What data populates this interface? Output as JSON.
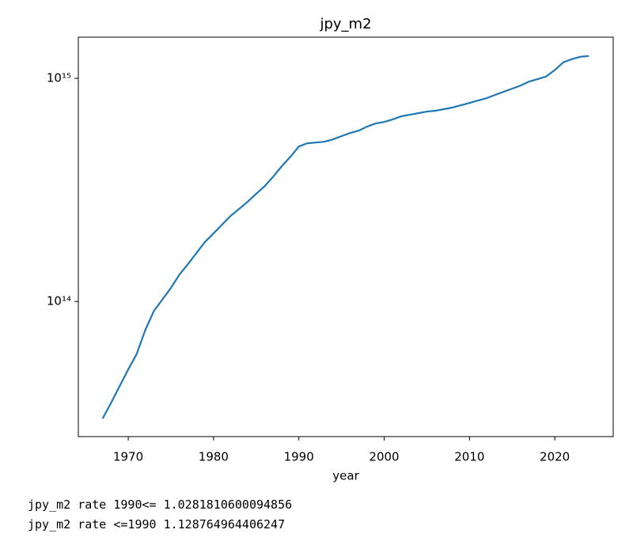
{
  "chart_data": {
    "type": "line",
    "title": "jpy_m2",
    "xlabel": "year",
    "x": [
      1967,
      1968,
      1969,
      1970,
      1971,
      1972,
      1973,
      1974,
      1975,
      1976,
      1977,
      1978,
      1979,
      1980,
      1981,
      1982,
      1983,
      1984,
      1985,
      1986,
      1987,
      1988,
      1989,
      1990,
      1991,
      1992,
      1993,
      1994,
      1995,
      1996,
      1997,
      1998,
      1999,
      2000,
      2001,
      2002,
      2003,
      2004,
      2005,
      2006,
      2007,
      2008,
      2009,
      2010,
      2011,
      2012,
      2013,
      2014,
      2015,
      2016,
      2017,
      2018,
      2019,
      2020,
      2021,
      2022,
      2023,
      2024
    ],
    "values": [
      29900000000000.0,
      35200000000000.0,
      41800000000000.0,
      49600000000000.0,
      58300000000000.0,
      74500000000000.0,
      90600000000000.0,
      102000000000000.0,
      115000000000000.0,
      132000000000000.0,
      147000000000000.0,
      165000000000000.0,
      185000000000000.0,
      202000000000000.0,
      221000000000000.0,
      242000000000000.0,
      260000000000000.0,
      280000000000000.0,
      304000000000000.0,
      329000000000000.0,
      363000000000000.0,
      404000000000000.0,
      445000000000000.0,
      495000000000000.0,
      512000000000000.0,
      516000000000000.0,
      520000000000000.0,
      533000000000000.0,
      551000000000000.0,
      569000000000000.0,
      583000000000000.0,
      608000000000000.0,
      628000000000000.0,
      638000000000000.0,
      655000000000000.0,
      676000000000000.0,
      687000000000000.0,
      698000000000000.0,
      710000000000000.0,
      716000000000000.0,
      728000000000000.0,
      740000000000000.0,
      758000000000000.0,
      776000000000000.0,
      796000000000000.0,
      815000000000000.0,
      843000000000000.0,
      871000000000000.0,
      899000000000000.0,
      929000000000000.0,
      968000000000000.0,
      992000000000000.0,
      1020000000000000.0,
      1090000000000000.0,
      1180000000000000.0,
      1220000000000000.0,
      1250000000000000.0,
      1260000000000000.0
    ],
    "color": "#1f77b4",
    "xlim": [
      1964.15,
      2026.85
    ],
    "xticks": [
      1970,
      1980,
      1990,
      2000,
      2010,
      2020
    ],
    "ylim": [
      24800000000000.0,
      1530000000000000.0
    ],
    "yscale": "log",
    "yticks": [
      {
        "value": 100000000000000.0,
        "label": "10¹⁴"
      },
      {
        "value": 1000000000000000.0,
        "label": "10¹⁵"
      }
    ]
  },
  "output": [
    "jpy_m2 rate 1990<= 1.0281810600094856",
    "jpy_m2 rate <=1990 1.128764964406247"
  ]
}
